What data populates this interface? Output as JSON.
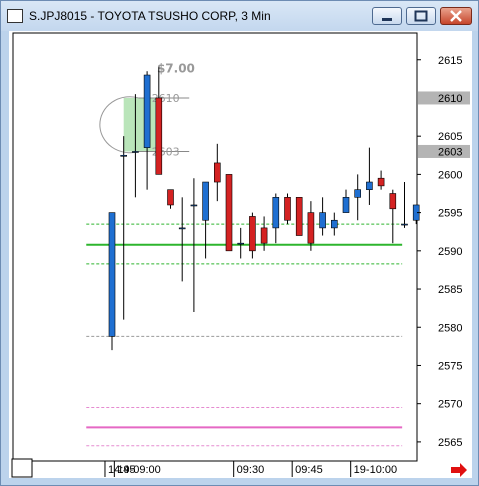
{
  "window": {
    "title": "S.JPJ8015 - TOYOTA TSUSHO CORP, 3 Min"
  },
  "chart_data": {
    "type": "candlestick",
    "symbol": "S.JPJ8015",
    "interval": "3 Min",
    "y_ticks": [
      "2615",
      "2605",
      "2600",
      "2595",
      "2590",
      "2585",
      "2580",
      "2575",
      "2570",
      "2565"
    ],
    "price_tags": [
      {
        "label": "2610",
        "value": 2610
      },
      {
        "label": "2603",
        "value": 2603
      }
    ],
    "x_ticks": [
      {
        "label": "14:45",
        "idx": -0.6
      },
      {
        "label": "19-09:00",
        "idx": 0.2
      },
      {
        "label": "09:30",
        "idx": 10.4
      },
      {
        "label": "09:45",
        "idx": 15.4
      },
      {
        "label": "19-10:00",
        "idx": 20.4
      }
    ],
    "ylim": [
      2562.5,
      2618.5
    ],
    "candles": [
      {
        "o": 2578.8,
        "h": 2595.0,
        "l": 2577.0,
        "c": 2595.0
      },
      {
        "o": 2602.5,
        "h": 2605.0,
        "l": 2581.0,
        "c": 2602.5
      },
      {
        "o": 2603.0,
        "h": 2610.5,
        "l": 2597.0,
        "c": 2603.0
      },
      {
        "o": 2603.5,
        "h": 2613.5,
        "l": 2598.0,
        "c": 2613.0
      },
      {
        "o": 2610.0,
        "h": 2614.0,
        "l": 2600.0,
        "c": 2600.0
      },
      {
        "o": 2598.0,
        "h": 2598.0,
        "l": 2595.5,
        "c": 2596.0
      },
      {
        "o": 2593.0,
        "h": 2597.0,
        "l": 2586.0,
        "c": 2593.0
      },
      {
        "o": 2596.0,
        "h": 2599.5,
        "l": 2582.0,
        "c": 2596.0
      },
      {
        "o": 2594.0,
        "h": 2599.0,
        "l": 2589.0,
        "c": 2599.0
      },
      {
        "o": 2601.5,
        "h": 2604.0,
        "l": 2596.5,
        "c": 2599.0
      },
      {
        "o": 2600.0,
        "h": 2600.0,
        "l": 2590.0,
        "c": 2590.0
      },
      {
        "o": 2591.0,
        "h": 2593.0,
        "l": 2589.0,
        "c": 2591.0
      },
      {
        "o": 2594.5,
        "h": 2595.0,
        "l": 2589.0,
        "c": 2590.0
      },
      {
        "o": 2593.0,
        "h": 2594.5,
        "l": 2590.0,
        "c": 2591.0
      },
      {
        "o": 2593.0,
        "h": 2597.5,
        "l": 2591.0,
        "c": 2597.0
      },
      {
        "o": 2597.0,
        "h": 2597.5,
        "l": 2593.5,
        "c": 2594.0
      },
      {
        "o": 2597.0,
        "h": 2597.0,
        "l": 2592.0,
        "c": 2592.0
      },
      {
        "o": 2595.0,
        "h": 2596.5,
        "l": 2590.0,
        "c": 2591.0
      },
      {
        "o": 2593.0,
        "h": 2597.0,
        "l": 2592.0,
        "c": 2595.0
      },
      {
        "o": 2593.0,
        "h": 2595.0,
        "l": 2592.0,
        "c": 2594.0
      },
      {
        "o": 2595.0,
        "h": 2598.0,
        "l": 2595.0,
        "c": 2597.0
      },
      {
        "o": 2597.0,
        "h": 2600.0,
        "l": 2594.0,
        "c": 2598.0
      },
      {
        "o": 2598.0,
        "h": 2603.5,
        "l": 2596.0,
        "c": 2599.0
      },
      {
        "o": 2599.5,
        "h": 2600.5,
        "l": 2598.0,
        "c": 2598.5
      },
      {
        "o": 2597.5,
        "h": 2598.0,
        "l": 2591.0,
        "c": 2595.5
      },
      {
        "o": 2593.5,
        "h": 2599.0,
        "l": 2593.0,
        "c": 2593.5
      },
      {
        "o": 2594.0,
        "h": 2596.0,
        "l": 2593.5,
        "c": 2596.0
      }
    ],
    "horizontal_lines": [
      {
        "value": 2590.8,
        "color": "#2db52d",
        "style": "solid",
        "width": 2,
        "from": -2.2,
        "to": 24.8
      },
      {
        "value": 2593.5,
        "color": "#2db52d",
        "style": "dashed",
        "width": 1,
        "from": -2.2,
        "to": 24.8
      },
      {
        "value": 2588.3,
        "color": "#2db52d",
        "style": "dashed",
        "width": 1,
        "from": -2.2,
        "to": 24.8
      },
      {
        "value": 2578.8,
        "color": "#999999",
        "style": "dashed",
        "width": 1,
        "from": -2.2,
        "to": 24.8
      },
      {
        "value": 2569.5,
        "color": "#e58bd0",
        "style": "dashed",
        "width": 1,
        "from": -2.2,
        "to": 24.8
      },
      {
        "value": 2566.9,
        "color": "#e568c4",
        "style": "solid",
        "width": 2,
        "from": -2.2,
        "to": 24.8
      },
      {
        "value": 2564.5,
        "color": "#e58bd0",
        "style": "dashed",
        "width": 1,
        "from": -2.2,
        "to": 24.8
      }
    ],
    "annotation": {
      "label": "$7.00",
      "top_label": "2610",
      "bottom_label": "2603",
      "top": 2610,
      "bottom": 2603,
      "from_idx": 1,
      "to_idx": 3.7
    }
  }
}
